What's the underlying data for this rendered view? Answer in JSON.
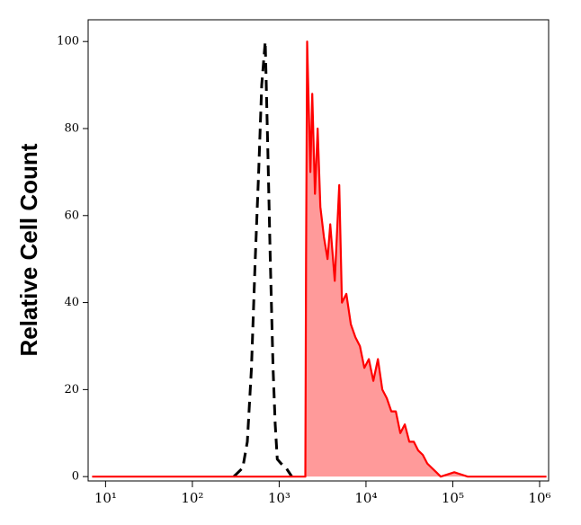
{
  "chart_data": {
    "type": "histogram-line",
    "y_label": "Relative Cell Count",
    "x_scale": "log",
    "xlim": [
      6.3,
      1270000
    ],
    "ylim": [
      -1,
      105
    ],
    "xticks": [
      {
        "value": 10,
        "label": "10¹"
      },
      {
        "value": 100,
        "label": "10²"
      },
      {
        "value": 1000,
        "label": "10³"
      },
      {
        "value": 10000,
        "label": "10⁴"
      },
      {
        "value": 100000,
        "label": "10⁵"
      },
      {
        "value": 1000000,
        "label": "10⁶"
      }
    ],
    "yticks": [
      0,
      20,
      40,
      60,
      80,
      100
    ],
    "series": [
      {
        "color": "#000000",
        "style": "dashed",
        "fill": false,
        "x": [
          300,
          380,
          430,
          480,
          530,
          580,
          630,
          690,
          740,
          790,
          850,
          900,
          950,
          1050,
          1200,
          1400
        ],
        "values": [
          0,
          2,
          8,
          25,
          50,
          70,
          90,
          100,
          75,
          50,
          25,
          12,
          4,
          3,
          2,
          0
        ]
      },
      {
        "color": "#ff0000",
        "style": "solid",
        "fill": "#ff9a9a",
        "x": [
          7,
          2000,
          2040,
          2100,
          2290,
          2404,
          2582,
          2773,
          2979,
          3281,
          3606,
          3873,
          4365,
          4920,
          5281,
          5945,
          6698,
          7550,
          8510,
          9574,
          10790,
          12160,
          13710,
          15420,
          17380,
          19590,
          22080,
          24830,
          27990,
          31550,
          35560,
          40000,
          45080,
          50820,
          57280,
          64570,
          72610,
          104000,
          148600,
          1200000
        ],
        "values": [
          0,
          0,
          50,
          100,
          70,
          88,
          65,
          80,
          62,
          55,
          50,
          58,
          45,
          67,
          40,
          42,
          35,
          32,
          30,
          25,
          27,
          22,
          27,
          20,
          18,
          15,
          15,
          10,
          12,
          8,
          8,
          6,
          5,
          3,
          2,
          1,
          0,
          1,
          0,
          0
        ]
      }
    ]
  }
}
